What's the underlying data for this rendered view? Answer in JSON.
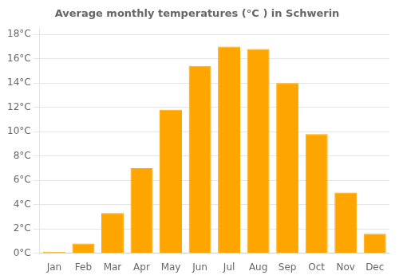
{
  "chart_data": {
    "type": "bar",
    "title": "Average monthly temperatures (°C ) in Schwerin",
    "categories": [
      "Jan",
      "Feb",
      "Mar",
      "Apr",
      "May",
      "Jun",
      "Jul",
      "Aug",
      "Sep",
      "Oct",
      "Nov",
      "Dec"
    ],
    "values": [
      0.1,
      0.8,
      3.3,
      7.0,
      11.8,
      15.4,
      17.0,
      16.8,
      14.0,
      9.8,
      5.0,
      1.6
    ],
    "color": "#FFA500",
    "ylim": [
      0,
      18.5
    ],
    "yticks": [
      {
        "value": 0,
        "label": "0°C"
      },
      {
        "value": 2,
        "label": "2°C"
      },
      {
        "value": 4,
        "label": "4°C"
      },
      {
        "value": 6,
        "label": "6°C"
      },
      {
        "value": 8,
        "label": "8°C"
      },
      {
        "value": 10,
        "label": "10°C"
      },
      {
        "value": 12,
        "label": "12°C"
      },
      {
        "value": 14,
        "label": "14°C"
      },
      {
        "value": 16,
        "label": "16°C"
      },
      {
        "value": 18,
        "label": "18°C"
      }
    ],
    "grid": true
  }
}
